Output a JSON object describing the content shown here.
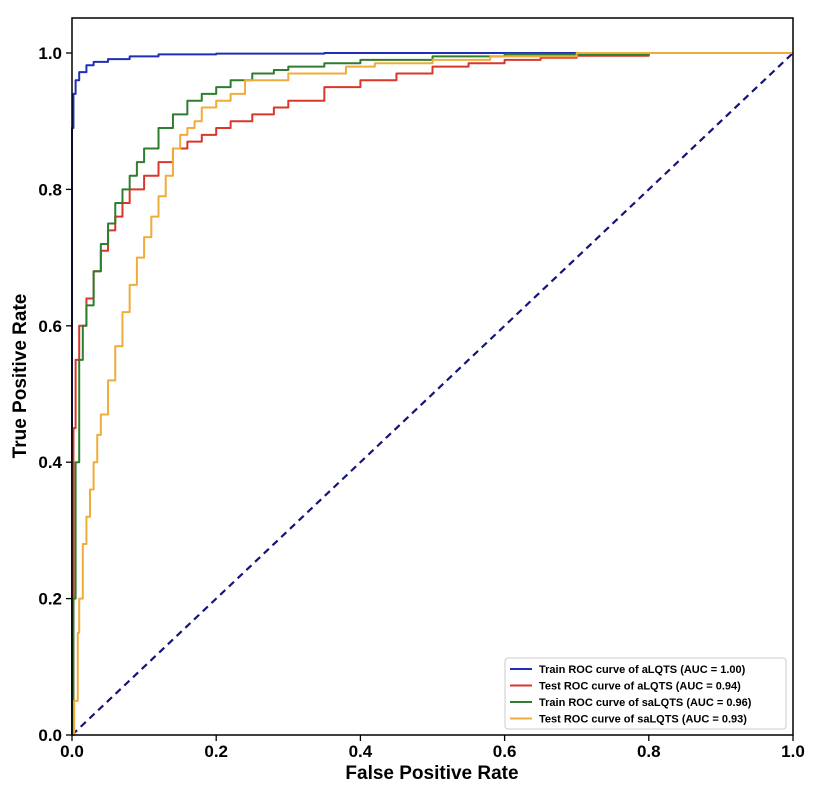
{
  "chart_data": {
    "type": "line",
    "title": "",
    "xlabel": "False Positive Rate",
    "ylabel": "True Positive Rate",
    "xlim": [
      0.0,
      1.0
    ],
    "ylim": [
      0.0,
      1.0
    ],
    "xticks": [
      "0.0",
      "0.2",
      "0.4",
      "0.6",
      "0.8",
      "1.0"
    ],
    "yticks": [
      "0.0",
      "0.2",
      "0.4",
      "0.6",
      "0.8",
      "1.0"
    ],
    "grid": false,
    "legend_position": "lower-right",
    "series": [
      {
        "name": "Train ROC curve of aLQTS (AUC = 1.00)",
        "color": "#1f2fb8",
        "x": [
          0.0,
          0.0,
          0.002,
          0.005,
          0.01,
          0.02,
          0.03,
          0.05,
          0.08,
          0.12,
          0.2,
          0.35,
          0.58,
          1.0
        ],
        "y": [
          0.0,
          0.89,
          0.94,
          0.96,
          0.972,
          0.982,
          0.987,
          0.991,
          0.995,
          0.998,
          0.999,
          1.0,
          1.0,
          1.0
        ]
      },
      {
        "name": "Test ROC curve of aLQTS (AUC = 0.94)",
        "color": "#d8372b",
        "x": [
          0.0,
          0.002,
          0.005,
          0.01,
          0.02,
          0.03,
          0.04,
          0.05,
          0.06,
          0.07,
          0.08,
          0.1,
          0.12,
          0.14,
          0.16,
          0.18,
          0.2,
          0.22,
          0.25,
          0.28,
          0.3,
          0.35,
          0.4,
          0.45,
          0.5,
          0.55,
          0.6,
          0.65,
          0.7,
          0.8,
          1.0
        ],
        "y": [
          0.0,
          0.45,
          0.55,
          0.6,
          0.64,
          0.68,
          0.71,
          0.74,
          0.76,
          0.78,
          0.8,
          0.82,
          0.84,
          0.86,
          0.87,
          0.88,
          0.89,
          0.9,
          0.91,
          0.92,
          0.93,
          0.95,
          0.96,
          0.97,
          0.98,
          0.985,
          0.99,
          0.993,
          0.996,
          1.0,
          1.0
        ]
      },
      {
        "name": "Train ROC curve of saLQTS (AUC = 0.96)",
        "color": "#2f7d2f",
        "x": [
          0.0,
          0.002,
          0.005,
          0.01,
          0.015,
          0.02,
          0.03,
          0.04,
          0.05,
          0.06,
          0.07,
          0.08,
          0.09,
          0.1,
          0.12,
          0.14,
          0.16,
          0.18,
          0.2,
          0.22,
          0.25,
          0.28,
          0.3,
          0.35,
          0.4,
          0.5,
          0.6,
          0.8,
          1.0
        ],
        "y": [
          0.0,
          0.2,
          0.4,
          0.55,
          0.6,
          0.63,
          0.68,
          0.72,
          0.75,
          0.78,
          0.8,
          0.82,
          0.84,
          0.86,
          0.89,
          0.91,
          0.93,
          0.94,
          0.95,
          0.96,
          0.97,
          0.975,
          0.98,
          0.985,
          0.99,
          0.995,
          0.998,
          1.0,
          1.0
        ]
      },
      {
        "name": "Test ROC curve of saLQTS (AUC = 0.93)",
        "color": "#f0ac3a",
        "x": [
          0.0,
          0.003,
          0.008,
          0.01,
          0.015,
          0.02,
          0.025,
          0.03,
          0.035,
          0.04,
          0.05,
          0.06,
          0.07,
          0.08,
          0.09,
          0.1,
          0.11,
          0.12,
          0.13,
          0.14,
          0.15,
          0.16,
          0.17,
          0.18,
          0.2,
          0.22,
          0.24,
          0.3,
          0.38,
          0.42,
          0.5,
          0.58,
          0.7,
          1.0
        ],
        "y": [
          0.0,
          0.05,
          0.15,
          0.2,
          0.28,
          0.32,
          0.36,
          0.4,
          0.44,
          0.47,
          0.52,
          0.57,
          0.62,
          0.66,
          0.7,
          0.73,
          0.76,
          0.79,
          0.82,
          0.86,
          0.88,
          0.89,
          0.9,
          0.92,
          0.93,
          0.94,
          0.96,
          0.97,
          0.98,
          0.985,
          0.99,
          0.995,
          1.0,
          1.0
        ]
      },
      {
        "name": "chance",
        "color": "#14147a",
        "x": [
          0.0,
          1.0
        ],
        "y": [
          0.0,
          1.0
        ],
        "dashed": true,
        "in_legend": false
      }
    ]
  }
}
